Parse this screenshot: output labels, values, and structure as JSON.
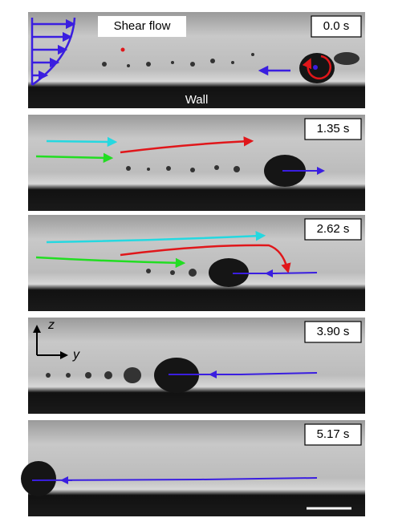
{
  "labels": {
    "shear_flow": "Shear flow",
    "wall": "Wall"
  },
  "axes": {
    "z": "z",
    "y": "y"
  },
  "panels": [
    {
      "time": "0.0 s"
    },
    {
      "time": "1.35 s"
    },
    {
      "time": "2.62 s"
    },
    {
      "time": "3.90 s"
    },
    {
      "time": "5.17 s"
    }
  ]
}
